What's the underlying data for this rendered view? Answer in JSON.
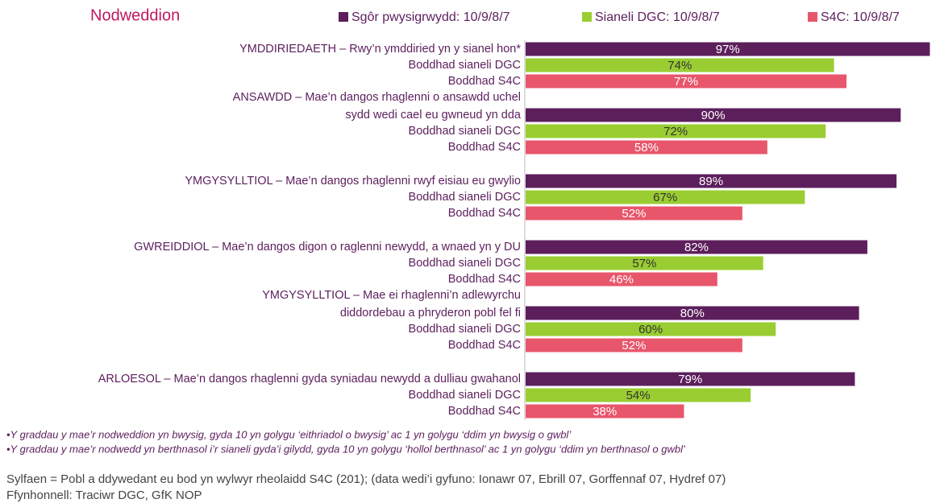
{
  "chart_data": {
    "type": "bar",
    "orientation": "horizontal",
    "title": "Nodweddion",
    "categories": [
      [
        "YMDDIRIEDAETH – Rwy’n ymddiried yn y sianel hon*"
      ],
      [
        "ANSAWDD – Mae’n dangos rhaglenni o ansawdd uchel",
        "sydd wedi cael eu gwneud yn dda"
      ],
      [
        "YMGYSYLLTIOL – Mae’n dangos rhaglenni rwyf eisiau eu gwylio"
      ],
      [
        "GWREIDDIOL – Mae’n dangos digon o raglenni newydd, a wnaed yn y DU"
      ],
      [
        "YMGYSYLLTIOL – Mae ei rhaglenni’n adlewyrchu",
        "diddordebau a phryderon pobl fel fi"
      ],
      [
        "ARLOESOL – Mae’n dangos rhaglenni gyda syniadau newydd a dulliau gwahanol"
      ]
    ],
    "series": [
      {
        "name": "Sgôr pwysigrwydd: 10/9/8/7",
        "color": "#5c1f5c",
        "values": [
          97,
          90,
          89,
          82,
          80,
          79
        ],
        "value_labels": [
          "97%",
          "90%",
          "89%",
          "82%",
          "80%",
          "79%"
        ]
      },
      {
        "name": "Sianeli DGC: 10/9/8/7",
        "color": "#9acd32",
        "row_label": "Boddhad sianeli DGC",
        "values": [
          74,
          72,
          67,
          57,
          60,
          54
        ],
        "value_labels": [
          "74%",
          "72%",
          "67%",
          "57%",
          "60%",
          "54%"
        ]
      },
      {
        "name": "S4C: 10/9/8/7",
        "color": "#e8566b",
        "row_label": "Boddhad S4C",
        "values": [
          77,
          58,
          52,
          46,
          52,
          38
        ],
        "value_labels": [
          "77%",
          "58%",
          "52%",
          "46%",
          "52%",
          "38%"
        ]
      }
    ],
    "xlim": [
      0,
      100
    ],
    "footnotes": [
      "•Y graddau y mae’r nodweddion yn bwysig, gyda 10 yn golygu ‘eithriadol o bwysig’ ac 1 yn golygu ‘ddim yn bwysig o gwbl’",
      "•Y graddau y mae’r nodwedd yn berthnasol i’r sianeli gyda’i gilydd, gyda 10 yn golygu ‘hollol berthnasol’ ac 1 yn golygu ‘ddim yn berthnasol o gwbl’"
    ],
    "base": "Sylfaen = Pobl a ddywedant eu bod yn wylwyr rheolaidd S4C (201); (data wedi’i gyfuno: Ionawr 07, Ebrill 07, Gorffennaf 07, Hydref 07)",
    "source": "Ffynhonnell: Traciwr DGC, GfK NOP"
  }
}
